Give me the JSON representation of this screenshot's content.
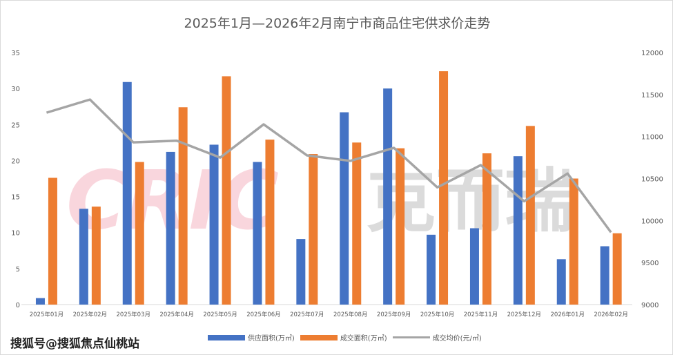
{
  "chart_data": {
    "type": "bar",
    "title": "2025年1月—2026年2月南宁市商品住宅供求价走势",
    "categories": [
      "2025年01月",
      "2025年02月",
      "2025年03月",
      "2025年04月",
      "2025年05月",
      "2025年06月",
      "2025年07月",
      "2025年08月",
      "2025年09月",
      "2025年10月",
      "2025年11月",
      "2025年12月",
      "2026年01月",
      "2026年02月"
    ],
    "series": [
      {
        "name": "供应面积(万㎡)",
        "type": "bar",
        "axis": "left",
        "color": "#4472c4",
        "values": [
          0.9,
          13.3,
          30.9,
          21.2,
          22.2,
          19.8,
          9.1,
          26.7,
          30.0,
          9.7,
          10.6,
          20.6,
          6.3,
          8.1
        ]
      },
      {
        "name": "成交面积(万㎡)",
        "type": "bar",
        "axis": "left",
        "color": "#ed7d31",
        "values": [
          17.6,
          13.6,
          19.8,
          27.4,
          31.7,
          22.9,
          20.9,
          22.5,
          21.7,
          32.4,
          21.0,
          24.8,
          17.5,
          9.9
        ]
      },
      {
        "name": "成交均价(元/㎡)",
        "type": "line",
        "axis": "right",
        "color": "#a5a5a5",
        "values": [
          11284,
          11440,
          10930,
          10950,
          10750,
          11145,
          10775,
          10710,
          10865,
          10395,
          10660,
          10230,
          10560,
          9860
        ]
      }
    ],
    "ylim_left": [
      0,
      35
    ],
    "yticks_left": [
      0,
      5,
      10,
      15,
      20,
      25,
      30,
      35
    ],
    "ylim_right": [
      9000,
      12000
    ],
    "yticks_right": [
      9000,
      9500,
      10000,
      10500,
      11000,
      11500,
      12000
    ],
    "legend": "bottom",
    "grid": false
  },
  "watermark": {
    "logo": "CRIC",
    "name": "克而瑞"
  },
  "footer": "搜狐号@搜狐焦点仙桃站"
}
